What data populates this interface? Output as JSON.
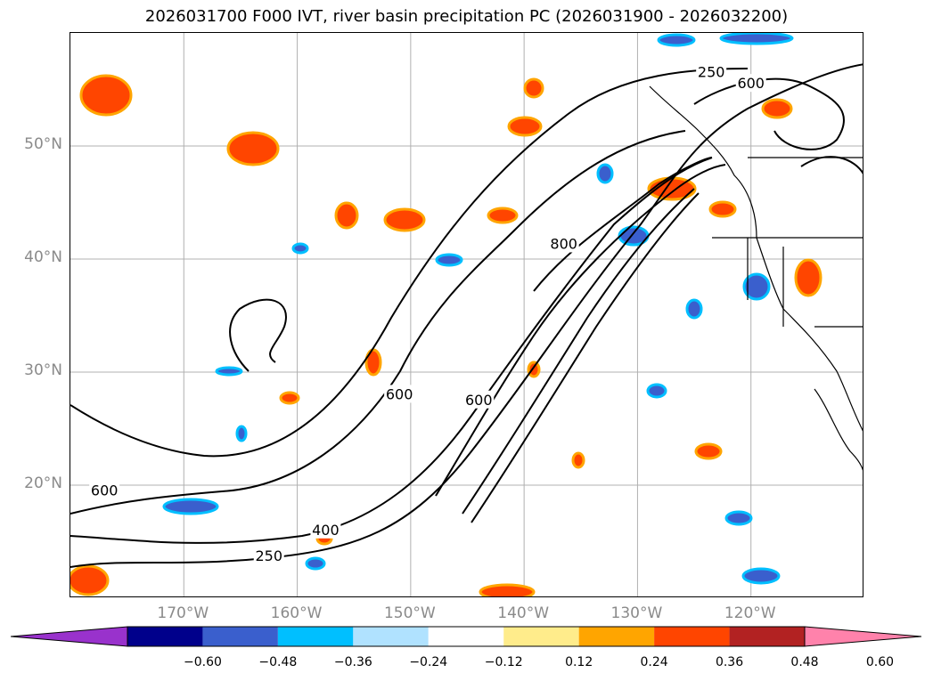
{
  "title": "2026031700 F000 IVT, river basin precipitation PC (2026031900 - 2026032200)",
  "map": {
    "lat_labels": [
      "50°N",
      "40°N",
      "30°N",
      "20°N"
    ],
    "lat_values": [
      50,
      40,
      30,
      20
    ],
    "lon_labels": [
      "170°W",
      "160°W",
      "150°W",
      "140°W",
      "130°W",
      "120°W"
    ],
    "lon_values": [
      -170,
      -160,
      -150,
      -140,
      -130,
      -120
    ],
    "extent": {
      "lon_min": -180,
      "lon_max": -110,
      "lat_min": 10,
      "lat_max": 60
    },
    "contour_labels": [
      {
        "text": "250",
        "lon": -123.5,
        "lat": 56.5
      },
      {
        "text": "600",
        "lon": -120.0,
        "lat": 55.5
      },
      {
        "text": "800",
        "lon": -136.5,
        "lat": 41.3
      },
      {
        "text": "600",
        "lon": -151.0,
        "lat": 28.0
      },
      {
        "text": "600",
        "lon": -144.0,
        "lat": 27.5
      },
      {
        "text": "600",
        "lon": -177.0,
        "lat": 19.5
      },
      {
        "text": "400",
        "lon": -157.5,
        "lat": 16.0
      },
      {
        "text": "250",
        "lon": -162.5,
        "lat": 13.7
      }
    ]
  },
  "colorbar": {
    "ticks": [
      "−0.60",
      "−0.48",
      "−0.36",
      "−0.24",
      "−0.12",
      "0.12",
      "0.24",
      "0.36",
      "0.48",
      "0.60"
    ],
    "bounds": [
      -0.6,
      -0.48,
      -0.36,
      -0.24,
      -0.12,
      0.12,
      0.24,
      0.36,
      0.48,
      0.6
    ],
    "colors": [
      "#9932cc",
      "#00008b",
      "#3a5fcd",
      "#00bfff",
      "#b0e2ff",
      "#ffffff",
      "#ffec8b",
      "#ffa500",
      "#ff4500",
      "#b22222",
      "#ff82ab"
    ]
  }
}
